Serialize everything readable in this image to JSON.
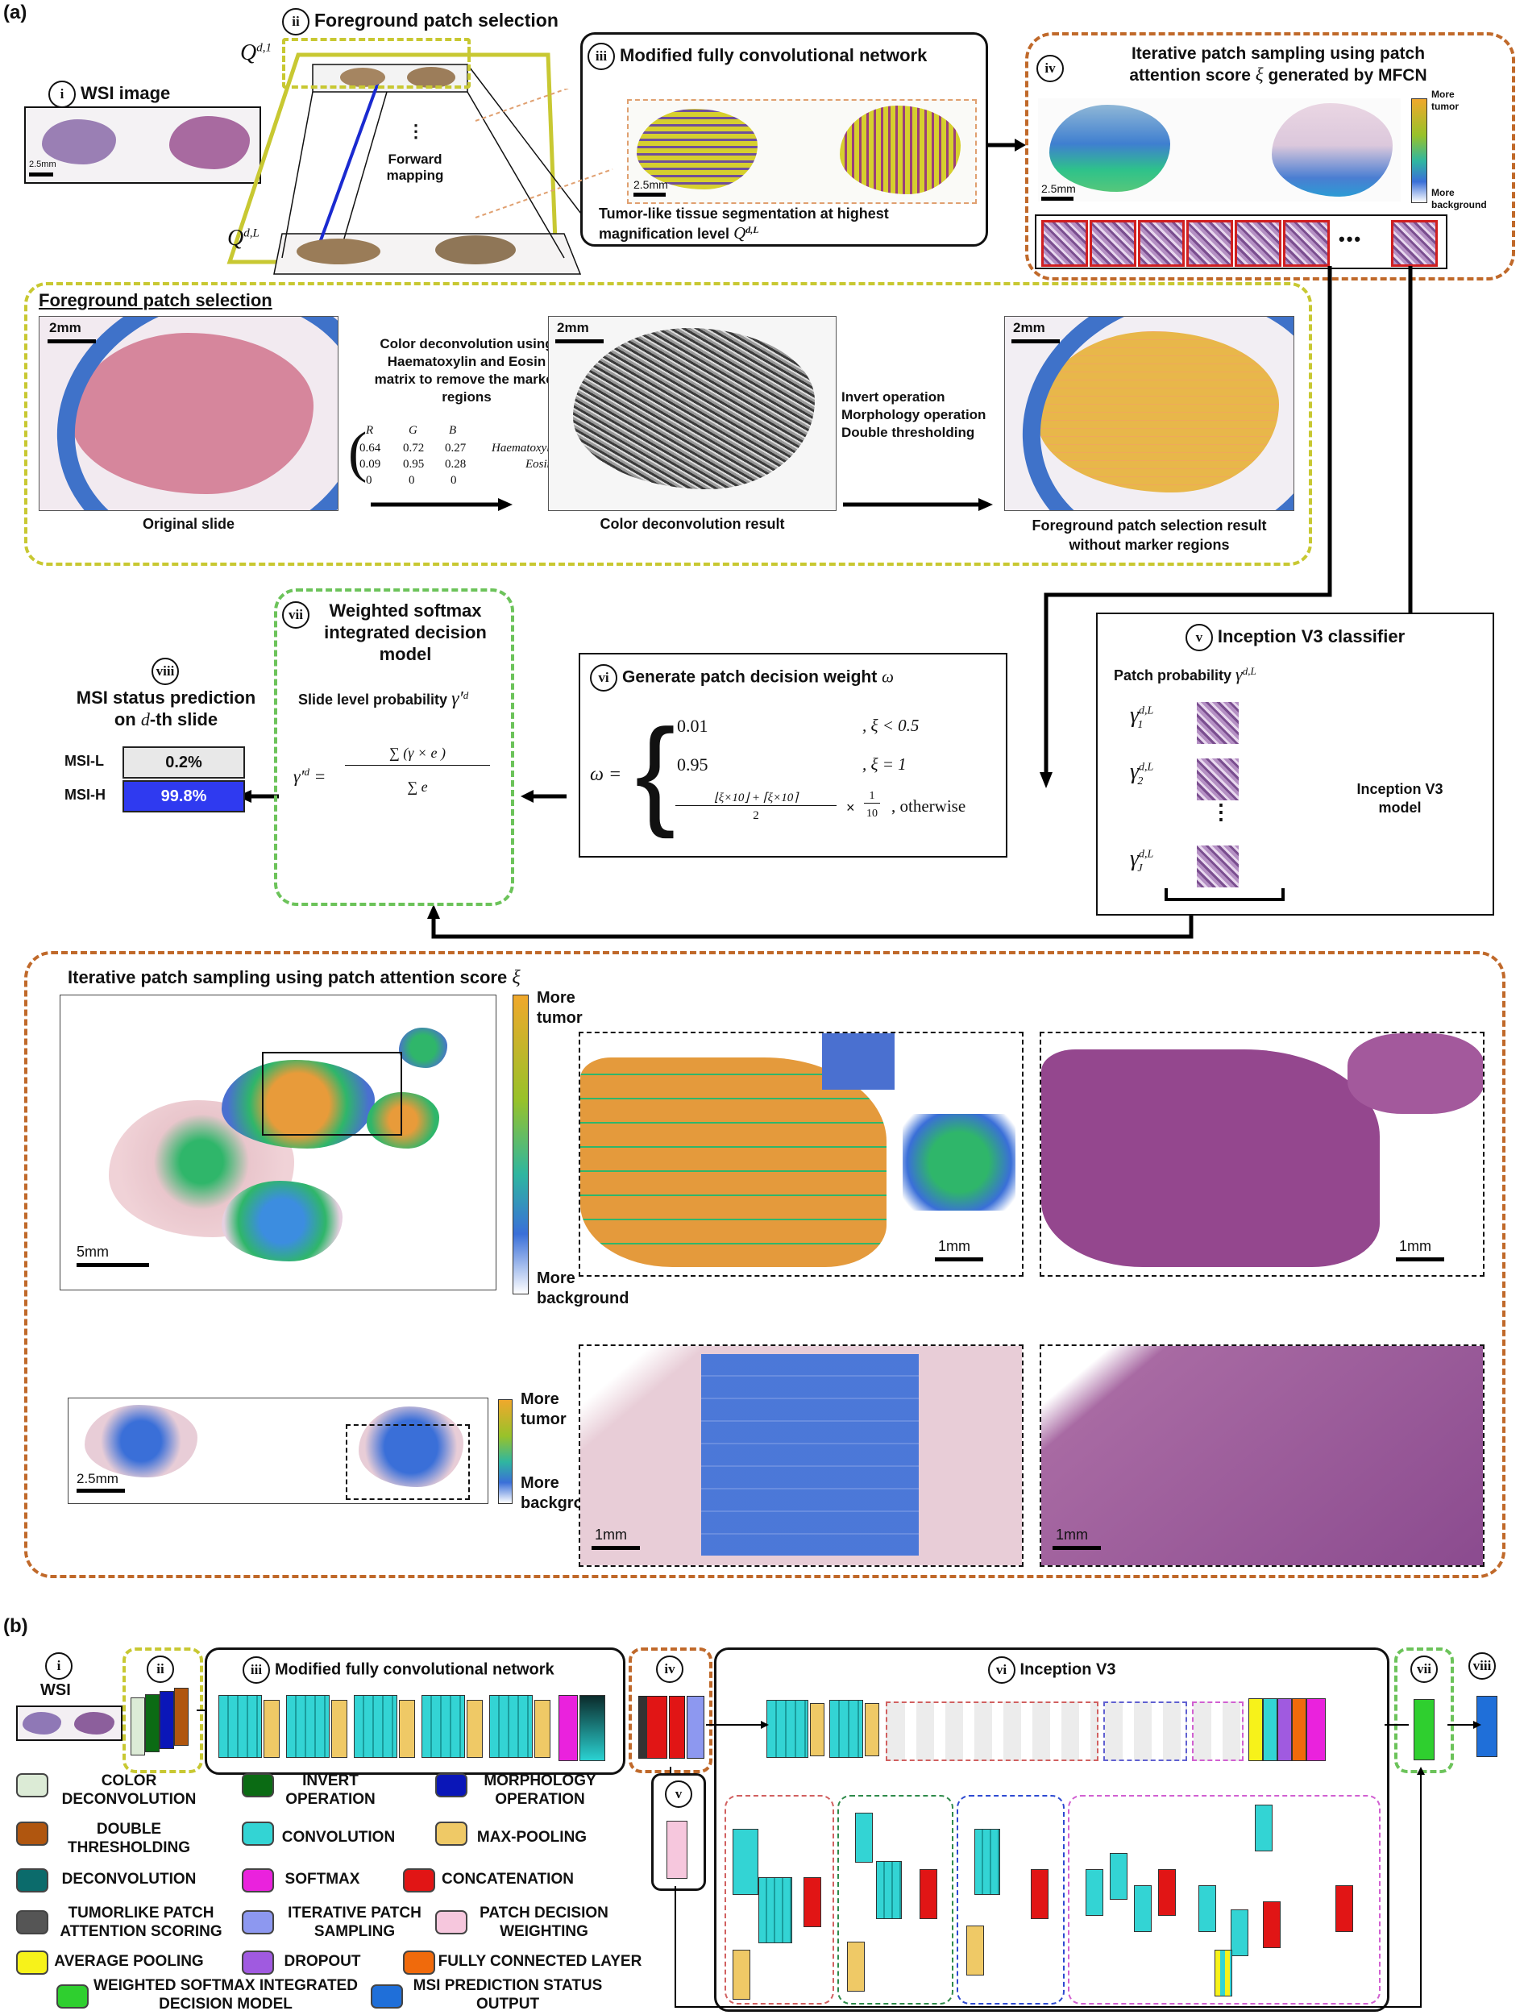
{
  "panel_a": {
    "label": "(a)",
    "wsi": {
      "title": "WSI image",
      "num": "i",
      "scale": "2.5mm"
    },
    "fps_top": {
      "title": "Foreground patch selection",
      "num": "ii",
      "q1": "Q",
      "q1_sup": "d,1",
      "qL": "Q",
      "qL_sup": "d,L",
      "dots": "⋮",
      "mapping": "Forward\nmapping"
    },
    "mfcn": {
      "title": "Modified fully convolutional network",
      "num": "iii",
      "scale": "2.5mm",
      "caption_1": "Tumor-like tissue segmentation at highest",
      "caption_2": "magnification level",
      "caption_sym": "Q",
      "caption_sup": "d,L"
    },
    "iter_top": {
      "title_1": "Iterative patch sampling using patch",
      "title_2": "attention score",
      "title_sym": "ξ",
      "title_3": "generated by MFCN",
      "num": "iv",
      "scale": "2.5mm",
      "more_tumor": "More\ntumor",
      "more_background": "More\nbackground",
      "ellipsis": "•••"
    },
    "fg_detail": {
      "title": "Foreground patch selection",
      "scale_1": "2mm",
      "scale_2": "2mm",
      "scale_3": "2mm",
      "deconv_text": "Color deconvolution using\nHaematoxylin and Eosin\nmatrix to remove the marker\nregions",
      "matrix_header": [
        "R",
        "G",
        "B"
      ],
      "matrix_rows": [
        [
          "0.64",
          "0.72",
          "0.27",
          "Haematoxylin"
        ],
        [
          "0.09",
          "0.95",
          "0.28",
          "Eosin"
        ],
        [
          "0",
          "0",
          "0",
          ""
        ]
      ],
      "invert_text": "Invert operation\nMorphology operation\nDouble thresholding",
      "cap_original": "Original slide",
      "cap_deconv": "Color deconvolution result",
      "cap_result": "Foreground patch selection result\nwithout marker regions"
    },
    "inception": {
      "num": "v",
      "title": "Inception V3 classifier",
      "patch_prob": "Patch probability",
      "gammas": [
        "γ",
        "γ",
        "γ"
      ],
      "gamma_subs": [
        "1",
        "2",
        "J"
      ],
      "gamma_sup": "d,L",
      "vdots": "⋮",
      "model_label": "Inception V3\nmodel"
    },
    "weight": {
      "num": "vi",
      "title": "Generate patch decision weight",
      "omega": "ω",
      "case1_val": "0.01",
      "case1_cond": ", ξ < 0.5",
      "case2_val": "0.95",
      "case2_cond": ", ξ = 1",
      "case3_cond": ", otherwise",
      "frac_den": "2",
      "mult": "×",
      "tenth_num": "1",
      "tenth_den": "10"
    },
    "softmax": {
      "num": "vii",
      "title": "Weighted softmax\nintegrated decision\nmodel",
      "slide_prob": "Slide level probability",
      "gamma_prime": "γ′",
      "gamma_sup": "d",
      "eq_lhs": "γ′",
      "eq_num": "∑ (γ  × e )",
      "eq_den": "∑ e"
    },
    "msi": {
      "num": "viii",
      "title_1": "MSI status prediction",
      "title_2": "on",
      "title_sym": "d",
      "title_3": "-th slide",
      "rows": [
        {
          "label": "MSI-L",
          "value": "0.2%"
        },
        {
          "label": "MSI-H",
          "value": "99.8%"
        }
      ]
    },
    "iter_bottom": {
      "title": "Iterative patch sampling using patch attention score",
      "title_sym": "ξ",
      "more_tumor": "More\ntumor",
      "more_background": "More\nbackground",
      "scale_big": "5mm",
      "scale_1mm_a": "1mm",
      "scale_1mm_b": "1mm",
      "more_tumor_2": "More\ntumor",
      "more_background_2": "More\nbackground",
      "scale_small": "2.5mm",
      "scale_1mm_c": "1mm",
      "scale_1mm_d": "1mm"
    }
  },
  "panel_b": {
    "label": "(b)",
    "wsi": {
      "num": "i",
      "label": "WSI"
    },
    "nums": [
      "ii",
      "iii",
      "iv",
      "v",
      "vi",
      "vii",
      "viii"
    ],
    "mfcn_title": "Modified fully convolutional network",
    "inception_title": "Inception V3",
    "legend": [
      {
        "label": "COLOR\nDECONVOLUTION",
        "color": "#dcebd6"
      },
      {
        "label": "INVERT\nOPERATION",
        "color": "#0b6b14"
      },
      {
        "label": "MORPHOLOGY\nOPERATION",
        "color": "#0a16b8"
      },
      {
        "label": "DOUBLE\nTHRESHOLDING",
        "color": "#b0560f"
      },
      {
        "label": "CONVOLUTION",
        "color": "#33d4d4"
      },
      {
        "label": "MAX-POOLING",
        "color": "#efc966"
      },
      {
        "label": "DECONVOLUTION",
        "color": "#0b6b6b"
      },
      {
        "label": "SOFTMAX",
        "color": "#ea22dd"
      },
      {
        "label": "CONCATENATION",
        "color": "#e11515"
      },
      {
        "label": "TUMORLIKE PATCH\nATTENTION SCORING",
        "color": "#555555"
      },
      {
        "label": "ITERATIVE PATCH\nSAMPLING",
        "color": "#8d98f0"
      },
      {
        "label": "PATCH DECISION\nWEIGHTING",
        "color": "#f6c7dd"
      },
      {
        "label": "AVERAGE POOLING",
        "color": "#f7f21a"
      },
      {
        "label": "DROPOUT",
        "color": "#a05ae0"
      },
      {
        "label": "FULLY CONNECTED LAYER",
        "color": "#f06a0c"
      },
      {
        "label": "WEIGHTED SOFTMAX INTEGRATED\nDECISION MODEL",
        "color": "#2fcf2f"
      },
      {
        "label": "MSI PREDICTION STATUS\nOUTPUT",
        "color": "#1f6fd9"
      }
    ]
  }
}
